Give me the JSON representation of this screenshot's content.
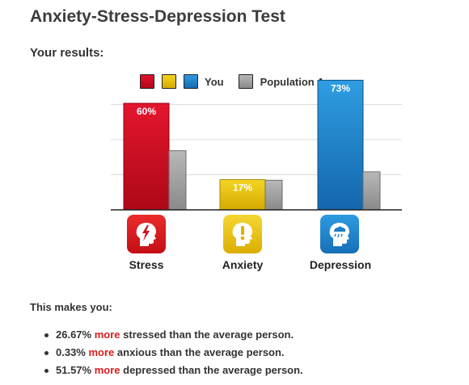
{
  "page": {
    "title": "Anxiety-Stress-Depression Test",
    "subtitle": "Your results:"
  },
  "legend": {
    "you_label": "You",
    "population_label": "Population Average",
    "colors": {
      "stress": "#c8102e",
      "anxiety": "#e2b800",
      "depression": "#1e7fc6",
      "population": "#9a9a9a"
    }
  },
  "chart_data": {
    "type": "bar",
    "categories": [
      "Stress",
      "Anxiety",
      "Depression"
    ],
    "series": [
      {
        "name": "You",
        "values": [
          60,
          17,
          73
        ],
        "labels": [
          "60%",
          "17%",
          "73%"
        ],
        "colors": [
          "#c8102e",
          "#e2b800",
          "#1e7fc6"
        ]
      },
      {
        "name": "Population Average",
        "values": [
          33.33,
          16.67,
          21.43
        ],
        "colors": [
          "#9a9a9a",
          "#9a9a9a",
          "#9a9a9a"
        ]
      }
    ],
    "ylim": [
      0,
      100
    ],
    "grid": true,
    "legend_position": "top"
  },
  "categories": [
    {
      "label": "Stress",
      "icon": "stress-head-icon",
      "color": "#d8141f"
    },
    {
      "label": "Anxiety",
      "icon": "anxiety-head-icon",
      "color": "#e8b900"
    },
    {
      "label": "Depression",
      "icon": "depression-head-icon",
      "color": "#1e84c8"
    }
  ],
  "summary": {
    "intro": "This makes you:",
    "items": [
      {
        "value": "26.67%",
        "keyword": "more",
        "rest": "stressed than the average person."
      },
      {
        "value": "0.33%",
        "keyword": "more",
        "rest": "anxious than the average person."
      },
      {
        "value": "51.57%",
        "keyword": "more",
        "rest": "depressed than the average person."
      }
    ]
  }
}
